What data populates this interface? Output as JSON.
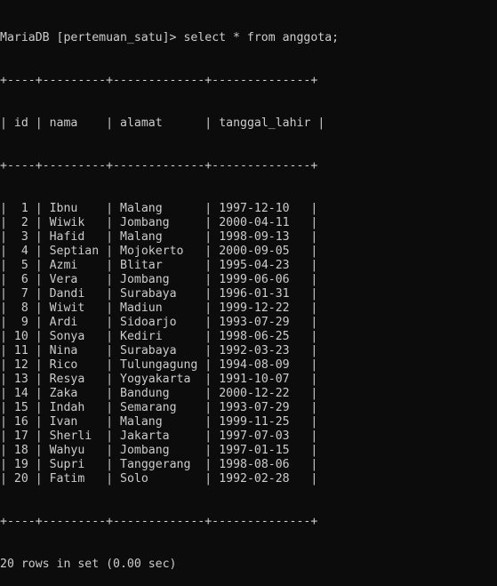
{
  "terminal": {
    "prompt": "MariaDB [pertemuan_satu]>",
    "command": "select * from anggota;",
    "border_line": "+----+---------+-------------+--------------+",
    "columns": [
      "id",
      "nama",
      "alamat",
      "tanggal_lahir"
    ],
    "rows": [
      [
        "1",
        "Ibnu",
        "Malang",
        "1997-12-10"
      ],
      [
        "2",
        "Wiwik",
        "Jombang",
        "2000-04-11"
      ],
      [
        "3",
        "Hafid",
        "Malang",
        "1998-09-13"
      ],
      [
        "4",
        "Septian",
        "Mojokerto",
        "2000-09-05"
      ],
      [
        "5",
        "Azmi",
        "Blitar",
        "1995-04-23"
      ],
      [
        "6",
        "Vera",
        "Jombang",
        "1999-06-06"
      ],
      [
        "7",
        "Dandi",
        "Surabaya",
        "1996-01-31"
      ],
      [
        "8",
        "Wiwit",
        "Madiun",
        "1999-12-22"
      ],
      [
        "9",
        "Ardi",
        "Sidoarjo",
        "1993-07-29"
      ],
      [
        "10",
        "Sonya",
        "Kediri",
        "1998-06-25"
      ],
      [
        "11",
        "Nina",
        "Surabaya",
        "1992-03-23"
      ],
      [
        "12",
        "Rico",
        "Tulungagung",
        "1994-08-09"
      ],
      [
        "13",
        "Resya",
        "Yogyakarta",
        "1991-10-07"
      ],
      [
        "14",
        "Zaka",
        "Bandung",
        "2000-12-22"
      ],
      [
        "15",
        "Indah",
        "Semarang",
        "1993-07-29"
      ],
      [
        "16",
        "Ivan",
        "Malang",
        "1999-11-25"
      ],
      [
        "17",
        "Sherli",
        "Jakarta",
        "1997-07-03"
      ],
      [
        "18",
        "Wahyu",
        "Jombang",
        "1997-01-15"
      ],
      [
        "19",
        "Supri",
        "Tanggerang",
        "1998-08-06"
      ],
      [
        "20",
        "Fatim",
        "Solo",
        "1992-02-28"
      ]
    ],
    "result_summary": "20 rows in set (0.00 sec)",
    "colors": {
      "background": "#0c0c0c",
      "text": "#cccccc"
    }
  }
}
